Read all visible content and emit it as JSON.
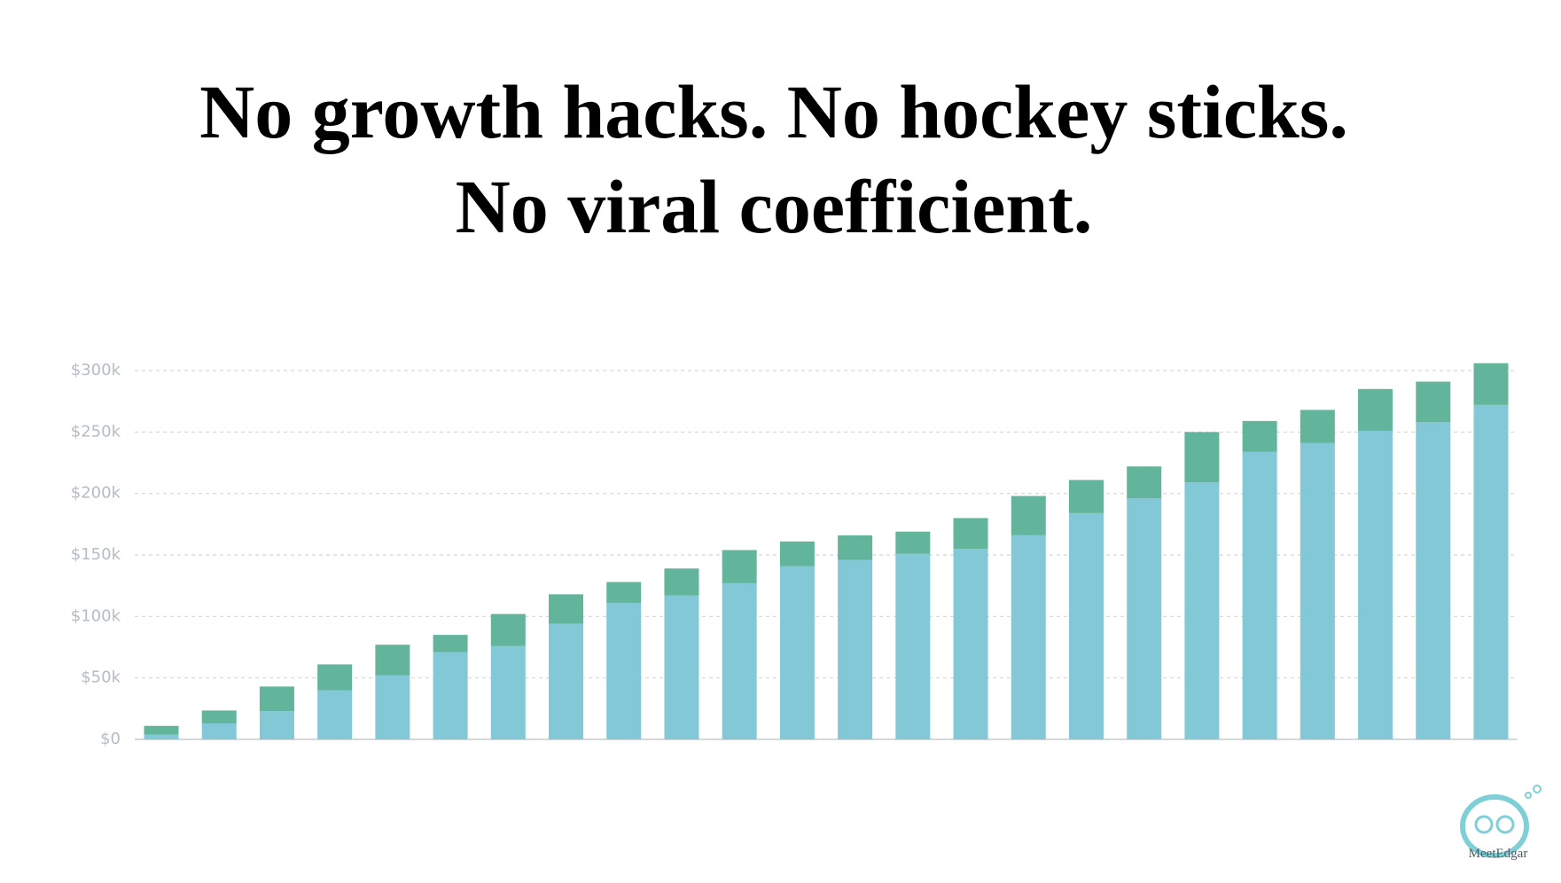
{
  "slide": {
    "title_lines": [
      "No growth hacks. No hockey sticks.",
      "No viral coefficient."
    ],
    "logo_text": "MeetEdgar"
  },
  "chart_data": {
    "type": "stacked_bar",
    "categories": [
      null,
      null,
      null,
      null,
      null,
      null,
      null,
      null,
      null,
      null,
      null,
      null,
      null,
      null,
      null,
      null,
      null,
      null,
      null,
      null,
      null,
      null,
      null,
      null
    ],
    "series": [
      {
        "color": "#82c8d6",
        "values": [
          4000,
          13000,
          23000,
          40000,
          52000,
          71000,
          76000,
          94000,
          111000,
          117000,
          127000,
          141000,
          146000,
          151000,
          155000,
          166000,
          184000,
          196000,
          209000,
          234000,
          241000,
          251000,
          258000,
          272000
        ]
      },
      {
        "color": "#62b49a",
        "values": [
          7000,
          10500,
          20000,
          21000,
          25000,
          14000,
          26000,
          24000,
          17000,
          22000,
          27000,
          20000,
          20000,
          18000,
          25000,
          32000,
          27000,
          26000,
          41000,
          25000,
          27000,
          34000,
          33000,
          34000
        ]
      }
    ],
    "ylim": [
      0,
      300000
    ],
    "yticks": [
      {
        "value": 0,
        "label": "$0"
      },
      {
        "value": 50000,
        "label": "$50k"
      },
      {
        "value": 100000,
        "label": "$100k"
      },
      {
        "value": 150000,
        "label": "$150k"
      },
      {
        "value": 200000,
        "label": "$200k"
      },
      {
        "value": 250000,
        "label": "$250k"
      },
      {
        "value": 300000,
        "label": "$300k"
      }
    ],
    "grid": true
  }
}
